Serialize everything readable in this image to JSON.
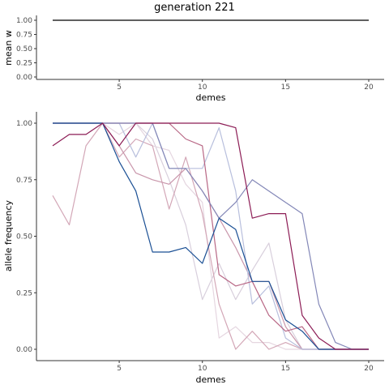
{
  "chart_data": [
    {
      "type": "line",
      "title": "generation 221",
      "xlabel": "demes",
      "ylabel": "mean w",
      "xlim": [
        1,
        20
      ],
      "ylim": [
        0,
        1
      ],
      "xticks": [
        "5",
        "10",
        "15",
        "20"
      ],
      "yticks": [
        "0.00",
        "0.25",
        "0.50",
        "0.75",
        "1.00"
      ],
      "grid": false,
      "series": [
        {
          "color": "#000000",
          "x": [
            1,
            20
          ],
          "values": [
            1.0,
            1.0
          ]
        }
      ]
    },
    {
      "type": "line",
      "xlabel": "demes",
      "ylabel": "allele frequency",
      "xlim": [
        1,
        20
      ],
      "ylim": [
        0,
        1
      ],
      "xticks": [
        "5",
        "10",
        "15",
        "20"
      ],
      "yticks": [
        "0.00",
        "0.25",
        "0.50",
        "0.75",
        "1.00"
      ],
      "grid": false,
      "series": [
        {
          "color": "#d8cfdc",
          "values": [
            1.0,
            1.0,
            1.0,
            1.0,
            1.0,
            1.0,
            0.93,
            0.75,
            0.55,
            0.22,
            0.38,
            0.22,
            0.35,
            0.47,
            0.13,
            0.0,
            0.0,
            0.0,
            0.0,
            0.0
          ]
        },
        {
          "color": "#e5d6e0",
          "values": [
            1.0,
            1.0,
            1.0,
            1.0,
            0.95,
            1.0,
            0.9,
            0.88,
            0.73,
            0.65,
            0.05,
            0.1,
            0.03,
            0.03,
            0.0,
            0.0,
            0.0,
            0.0,
            0.0,
            0.0
          ]
        },
        {
          "color": "#d3a7b7",
          "values": [
            0.68,
            0.55,
            0.9,
            1.0,
            0.85,
            0.93,
            0.9,
            0.62,
            0.85,
            0.6,
            0.2,
            0.0,
            0.08,
            0.0,
            0.03,
            0.0,
            0.0,
            0.0,
            0.0,
            0.0
          ]
        },
        {
          "color": "#c996ab",
          "values": [
            1.0,
            1.0,
            1.0,
            1.0,
            0.9,
            0.78,
            0.75,
            0.73,
            0.8,
            0.7,
            0.58,
            0.45,
            0.3,
            0.3,
            0.1,
            0.0,
            0.0,
            0.0,
            0.0,
            0.0
          ]
        },
        {
          "color": "#b8bfdd",
          "values": [
            1.0,
            1.0,
            1.0,
            1.0,
            1.0,
            0.85,
            1.0,
            0.8,
            0.8,
            0.8,
            0.98,
            0.7,
            0.2,
            0.28,
            0.05,
            0.0,
            0.0,
            0.0,
            0.0,
            0.0
          ]
        },
        {
          "color": "#b86785",
          "values": [
            1.0,
            1.0,
            1.0,
            1.0,
            1.0,
            1.0,
            1.0,
            1.0,
            0.93,
            0.9,
            0.33,
            0.28,
            0.3,
            0.15,
            0.08,
            0.1,
            0.0,
            0.0,
            0.0,
            0.0
          ]
        },
        {
          "color": "#8387b7",
          "values": [
            1.0,
            1.0,
            1.0,
            1.0,
            1.0,
            1.0,
            1.0,
            0.8,
            0.8,
            0.7,
            0.58,
            0.65,
            0.75,
            0.7,
            0.65,
            0.6,
            0.2,
            0.03,
            0.0,
            0.0
          ]
        },
        {
          "color": "#1a4f94",
          "values": [
            1.0,
            1.0,
            1.0,
            1.0,
            0.83,
            0.7,
            0.43,
            0.43,
            0.45,
            0.38,
            0.58,
            0.53,
            0.3,
            0.3,
            0.13,
            0.08,
            0.0,
            0.0,
            0.0,
            0.0
          ]
        },
        {
          "color": "#8c1c55",
          "values": [
            0.9,
            0.95,
            0.95,
            1.0,
            0.9,
            1.0,
            1.0,
            1.0,
            1.0,
            1.0,
            1.0,
            0.98,
            0.58,
            0.6,
            0.6,
            0.15,
            0.05,
            0.0,
            0.0,
            0.0
          ]
        }
      ]
    }
  ]
}
